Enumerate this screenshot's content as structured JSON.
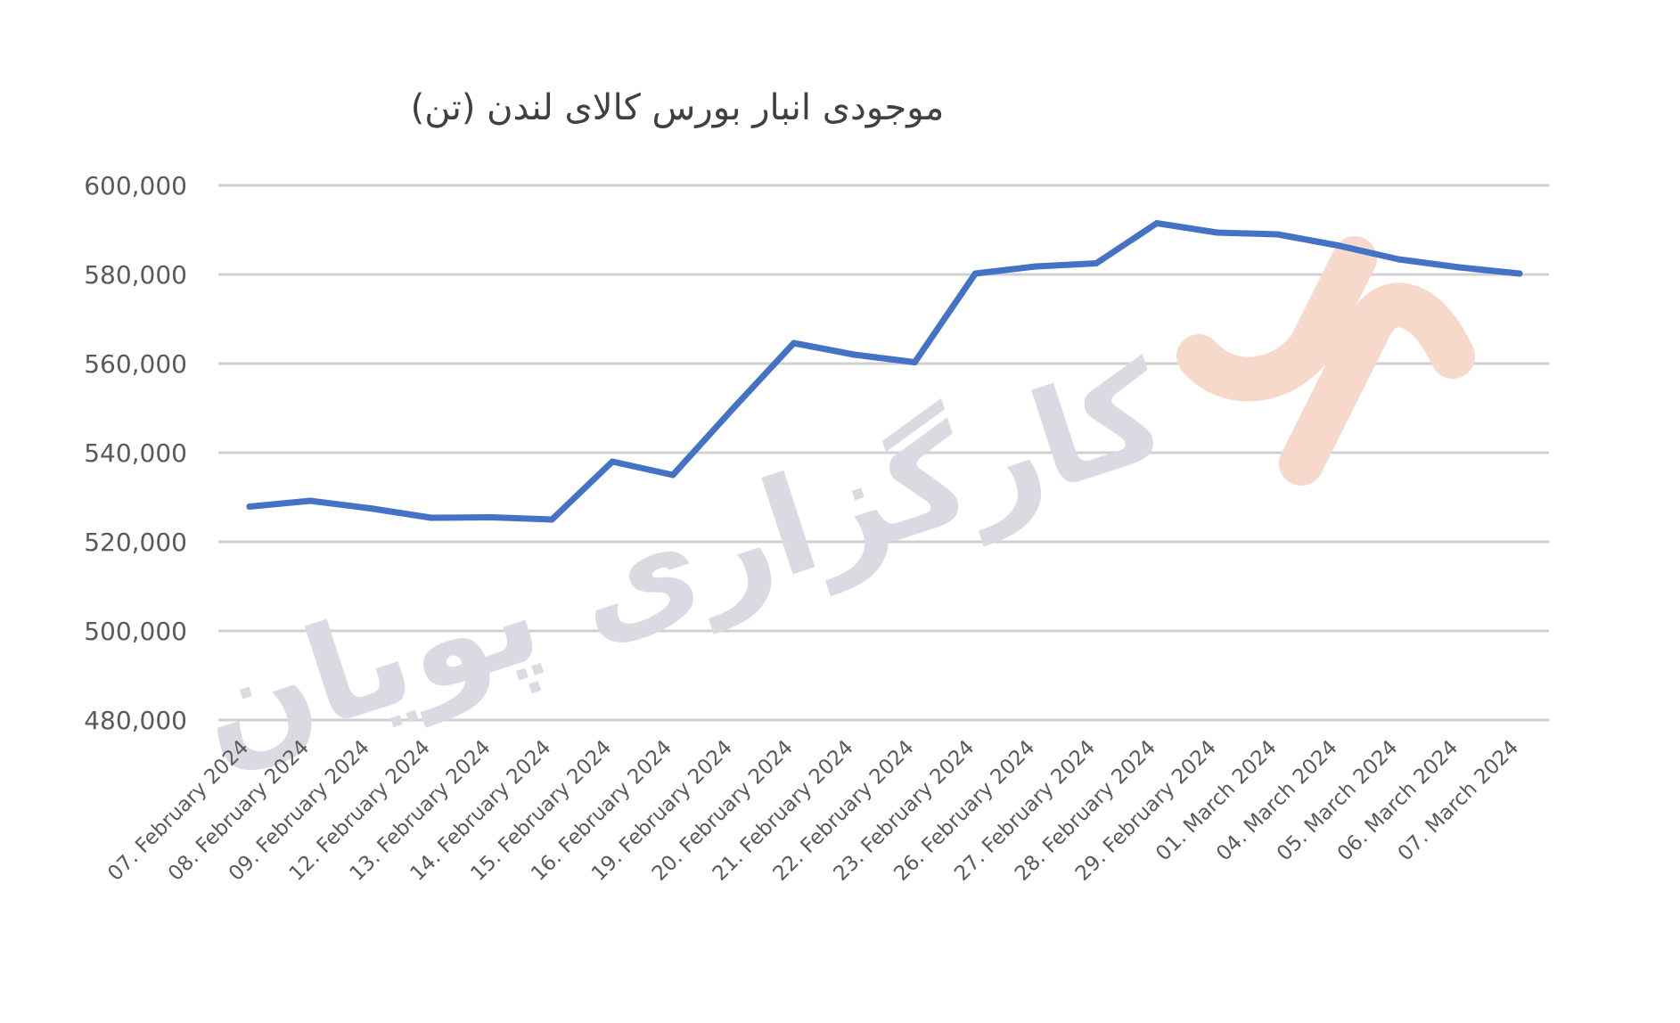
{
  "watermark": {
    "text": "کارگزاری پویان",
    "color": "#dadae2",
    "logo_color": "#f7d9cc"
  },
  "chart_data": {
    "type": "line",
    "title": "موجودی انبار بورس کالای لندن (تن)",
    "xlabel": "",
    "ylabel": "",
    "ylim": [
      480000,
      600000
    ],
    "y_ticks": [
      "480,000",
      "500,000",
      "520,000",
      "540,000",
      "560,000",
      "580,000",
      "600,000"
    ],
    "y_tick_values": [
      480000,
      500000,
      520000,
      540000,
      560000,
      580000,
      600000
    ],
    "grid": true,
    "legend": "none",
    "categories": [
      "07. February 2024",
      "08. February 2024",
      "09. February 2024",
      "12. February 2024",
      "13. February 2024",
      "14. February 2024",
      "15. February 2024",
      "16. February 2024",
      "19. February 2024",
      "20. February 2024",
      "21. February 2024",
      "22. February 2024",
      "23. February 2024",
      "26. February 2024",
      "27. February 2024",
      "28. February 2024",
      "29. February 2024",
      "01. March 2024",
      "04. March 2024",
      "05. March 2024",
      "06. March 2024",
      "07. March 2024"
    ],
    "series": [
      {
        "color": "#4472c4",
        "values": [
          527900,
          529200,
          527500,
          525400,
          525500,
          525000,
          538000,
          535000,
          550000,
          564600,
          562000,
          560300,
          580200,
          581800,
          582500,
          591500,
          589400,
          589000,
          586500,
          583400,
          581600,
          580200
        ]
      }
    ]
  }
}
